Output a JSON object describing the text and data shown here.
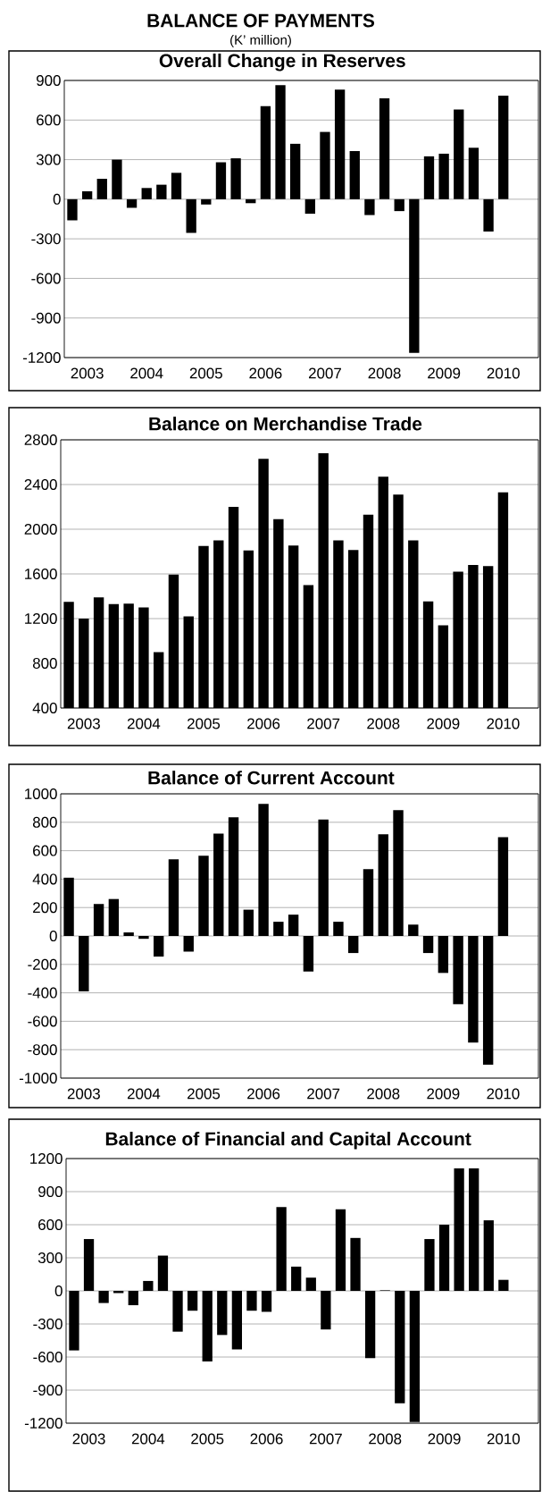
{
  "chart_data": [
    {
      "type": "other",
      "title": "BALANCE OF PAYMENTS",
      "subtitle": "(K’ million)"
    },
    {
      "type": "bar",
      "title": "Overall Change in Reserves",
      "color": "#000000",
      "grid": "y",
      "categories": [
        null,
        "2003",
        null,
        null,
        null,
        "2004",
        null,
        null,
        null,
        "2005",
        null,
        null,
        null,
        "2006",
        null,
        null,
        null,
        "2007",
        null,
        null,
        null,
        "2008",
        null,
        null,
        null,
        "2009",
        null,
        null,
        null,
        "2010"
      ],
      "values": [
        -160,
        60,
        155,
        300,
        -65,
        85,
        110,
        200,
        -255,
        -40,
        280,
        310,
        -30,
        705,
        865,
        420,
        -110,
        510,
        830,
        365,
        -120,
        765,
        -90,
        -1165,
        325,
        345,
        680,
        390,
        -245,
        785
      ],
      "ylim": [
        -1200,
        900
      ],
      "yticks": [
        -1200,
        -900,
        -600,
        -300,
        0,
        300,
        600,
        900
      ]
    },
    {
      "type": "bar",
      "title": "Balance on Merchandise Trade",
      "color": "#000000",
      "grid": "y",
      "categories": [
        null,
        "2003",
        null,
        null,
        null,
        "2004",
        null,
        null,
        null,
        "2005",
        null,
        null,
        null,
        "2006",
        null,
        null,
        null,
        "2007",
        null,
        null,
        null,
        "2008",
        null,
        null,
        null,
        "2009",
        null,
        null,
        null,
        "2010"
      ],
      "values": [
        1350,
        1200,
        1390,
        1330,
        1335,
        1300,
        900,
        1595,
        1220,
        1850,
        1900,
        2200,
        1810,
        2630,
        2090,
        1855,
        1500,
        2680,
        1900,
        1815,
        2130,
        2470,
        2310,
        1900,
        1355,
        1140,
        1620,
        1680,
        1670,
        2330
      ],
      "ylim": [
        400,
        2800
      ],
      "yticks": [
        400,
        800,
        1200,
        1600,
        2000,
        2400,
        2800
      ]
    },
    {
      "type": "bar",
      "title": "Balance of Current Account",
      "color": "#000000",
      "grid": "y",
      "categories": [
        null,
        "2003",
        null,
        null,
        null,
        "2004",
        null,
        null,
        null,
        "2005",
        null,
        null,
        null,
        "2006",
        null,
        null,
        null,
        "2007",
        null,
        null,
        null,
        "2008",
        null,
        null,
        null,
        "2009",
        null,
        null,
        null,
        "2010"
      ],
      "values": [
        410,
        -390,
        225,
        260,
        25,
        -20,
        -145,
        540,
        -110,
        565,
        720,
        835,
        185,
        930,
        100,
        150,
        -250,
        820,
        100,
        -120,
        470,
        715,
        885,
        80,
        -120,
        -260,
        -480,
        -750,
        -905,
        695
      ],
      "ylim": [
        -1000,
        1000
      ],
      "yticks": [
        -1000,
        -800,
        -600,
        -400,
        -200,
        0,
        200,
        400,
        600,
        800,
        1000
      ]
    },
    {
      "type": "bar",
      "title": "Balance of Financial and Capital Account",
      "color": "#000000",
      "grid": "y",
      "categories": [
        null,
        "2003",
        null,
        null,
        null,
        "2004",
        null,
        null,
        null,
        "2005",
        null,
        null,
        null,
        "2006",
        null,
        null,
        null,
        "2007",
        null,
        null,
        null,
        "2008",
        null,
        null,
        null,
        "2009",
        null,
        null,
        null,
        "2010"
      ],
      "values": [
        -540,
        470,
        -110,
        -20,
        -130,
        90,
        320,
        -370,
        -180,
        -640,
        -400,
        -530,
        -180,
        -190,
        760,
        220,
        120,
        -350,
        740,
        480,
        -610,
        5,
        -1020,
        -1190,
        470,
        600,
        1110,
        1110,
        640,
        100
      ],
      "ylim": [
        -1200,
        1200
      ],
      "yticks": [
        -1200,
        -900,
        -600,
        -300,
        0,
        300,
        600,
        900,
        1200
      ]
    }
  ]
}
